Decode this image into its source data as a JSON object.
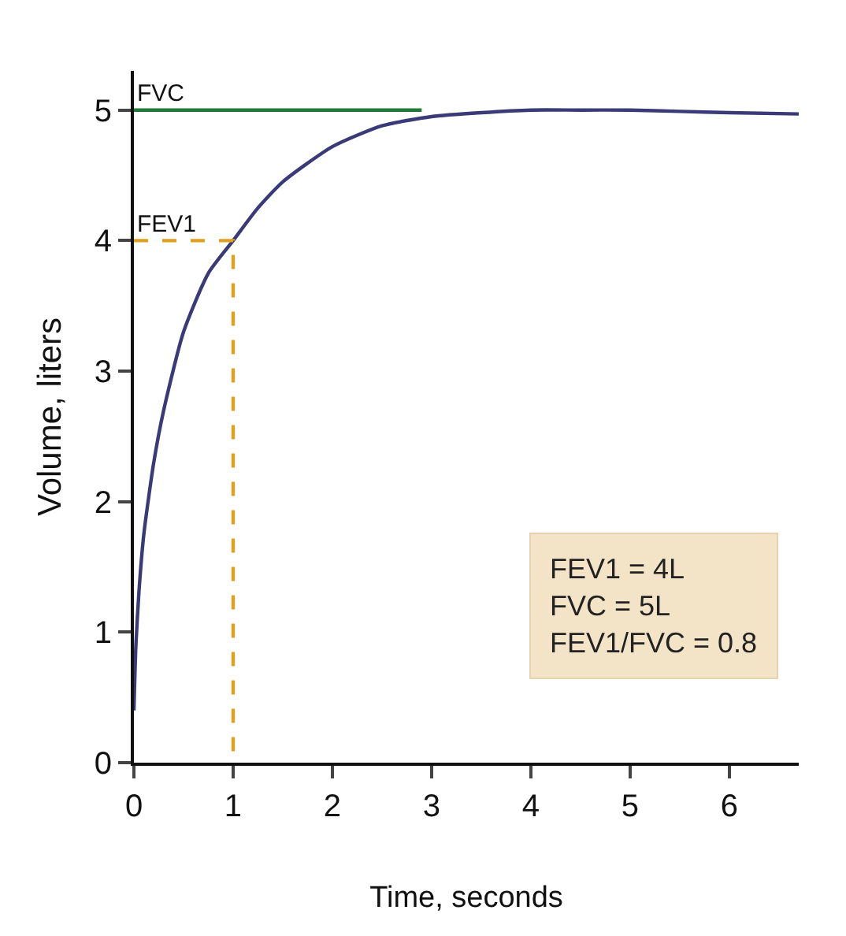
{
  "chart_data": {
    "type": "line",
    "xlabel": "Time, seconds",
    "ylabel": "Volume, liters",
    "xlim": [
      0,
      6.7
    ],
    "ylim": [
      0,
      5.3
    ],
    "xticks": [
      0,
      1,
      2,
      3,
      4,
      5,
      6
    ],
    "yticks": [
      0,
      1,
      2,
      3,
      4,
      5
    ],
    "grid": false,
    "legend": false,
    "marker": "none",
    "series": [
      {
        "color": "#3a3a78",
        "line_style": "solid",
        "x": [
          0,
          0.02,
          0.05,
          0.1,
          0.2,
          0.3,
          0.5,
          0.75,
          1,
          1.25,
          1.5,
          2,
          2.5,
          3,
          3.5,
          4,
          4.5,
          5,
          5.5,
          6,
          6.7
        ],
        "values": [
          0.4,
          0.9,
          1.3,
          1.75,
          2.3,
          2.7,
          3.3,
          3.75,
          4.0,
          4.25,
          4.45,
          4.72,
          4.88,
          4.95,
          4.98,
          5.0,
          5.0,
          5.0,
          4.99,
          4.98,
          4.97
        ]
      },
      {
        "name": "FVC",
        "color": "#1f7a3a",
        "line_style": "solid",
        "x": [
          0,
          2.9
        ],
        "values": [
          5,
          5
        ]
      },
      {
        "name": "FEV1",
        "color": "#e0a020",
        "line_style": "dashed",
        "x": [
          0,
          1,
          1
        ],
        "values": [
          4,
          4,
          0
        ]
      }
    ],
    "annotations": [
      "FEV1 = 4L",
      "FVC = 5L",
      "FEV1/FVC = 0.8"
    ]
  }
}
